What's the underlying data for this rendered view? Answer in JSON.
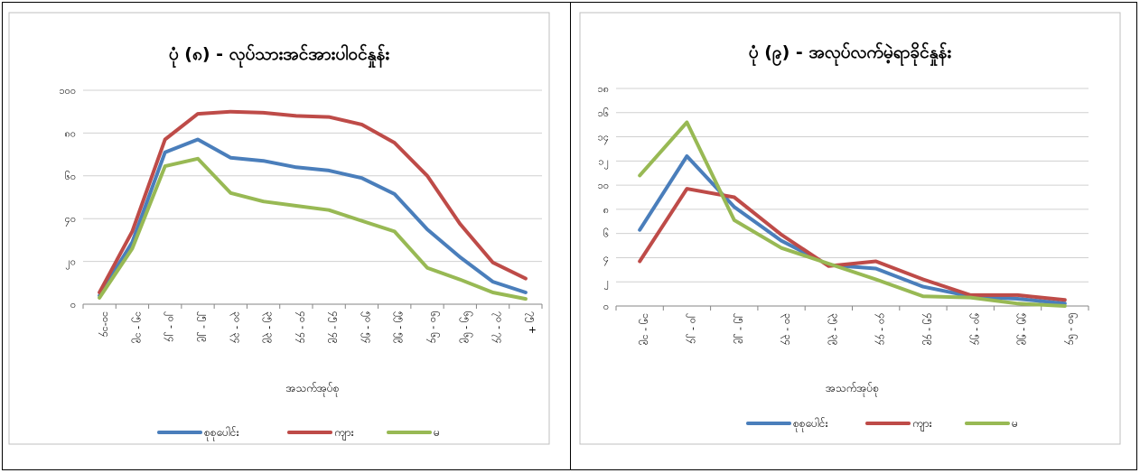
{
  "colors": {
    "total": "#4a7ebb",
    "male": "#be4b48",
    "female": "#98b954"
  },
  "chart_data": [
    {
      "type": "line",
      "title": "ပုံ (၈) - လုပ်သားအင်အားပါဝင်နှုန်း",
      "xlabel": "အသက်အုပ်စု",
      "ylabel": "",
      "ylim": [
        0,
        100
      ],
      "yticks": [
        "၀",
        "၂၀",
        "၄၀",
        "၆၀",
        "၈၀",
        "၁၀၀"
      ],
      "ytick_values": [
        0,
        20,
        40,
        60,
        80,
        100
      ],
      "categories": [
        "၁၀-၁၄",
        "၁၅ - ၁၉",
        "၂၀ - ၂၄",
        "၂၅ - ၂၉",
        "၃၀ - ၃၄",
        "၃၅ - ၃၉",
        "၄၀ - ၄၄",
        "၄၅ - ၄၉",
        "၅၀ - ၅၄",
        "၅၅ - ၅၉",
        "၆၀ - ၆၄",
        "၆၅ - ၆၉",
        "၇၀ - ၇၄",
        "၇၅ +"
      ],
      "legend_position": "bottom",
      "grid": true,
      "series": [
        {
          "name": "စုစုပေါင်း",
          "color": "#4a7ebb",
          "values": [
            4,
            29,
            71,
            77,
            68.5,
            67,
            64,
            62.5,
            59,
            51.5,
            35,
            22,
            10.5,
            5.5
          ]
        },
        {
          "name": "ကျား",
          "color": "#be4b48",
          "values": [
            5.5,
            34,
            77,
            89,
            90,
            89.5,
            88,
            87.5,
            84,
            75.5,
            60,
            37.5,
            19.5,
            12
          ]
        },
        {
          "name": "မ",
          "color": "#98b954",
          "values": [
            3,
            26,
            64.5,
            68,
            52,
            48,
            46,
            44,
            39,
            34,
            17,
            11.5,
            5.5,
            2.5
          ]
        }
      ]
    },
    {
      "type": "line",
      "title": "ပုံ (၉) - အလုပ်လက်မဲ့ရာခိုင်နှုန်း",
      "xlabel": "အသက်အုပ်စု",
      "ylabel": "",
      "ylim": [
        0,
        18
      ],
      "yticks": [
        "၀",
        "၂",
        "၄",
        "၆",
        "၈",
        "၁၀",
        "၁၂",
        "၁၄",
        "၁၆",
        "၁၈"
      ],
      "ytick_values": [
        0,
        2,
        4,
        6,
        8,
        10,
        12,
        14,
        16,
        18
      ],
      "categories": [
        "၁၅ - ၁၉",
        "၂၀ - ၂၄",
        "၂၅ - ၂၉",
        "၃၀ - ၃၄",
        "၃၅ - ၃၉",
        "၄၀ - ၄၄",
        "၄၅ - ၄၉",
        "၅၀ - ၅၄",
        "၅၅ - ၅၉",
        "၆၀ - ၆၄"
      ],
      "legend_position": "bottom",
      "grid": true,
      "series": [
        {
          "name": "စုစုပေါင်း",
          "color": "#4a7ebb",
          "values": [
            6.3,
            12.4,
            8.2,
            5.4,
            3.4,
            3.1,
            1.6,
            0.8,
            0.6,
            0.2
          ]
        },
        {
          "name": "ကျား",
          "color": "#be4b48",
          "values": [
            3.7,
            9.7,
            9.0,
            5.9,
            3.3,
            3.7,
            2.2,
            0.9,
            0.9,
            0.5
          ]
        },
        {
          "name": "မ",
          "color": "#98b954",
          "values": [
            10.8,
            15.2,
            7.1,
            4.8,
            3.5,
            2.2,
            0.8,
            0.7,
            0.2,
            0.0
          ]
        }
      ]
    }
  ]
}
